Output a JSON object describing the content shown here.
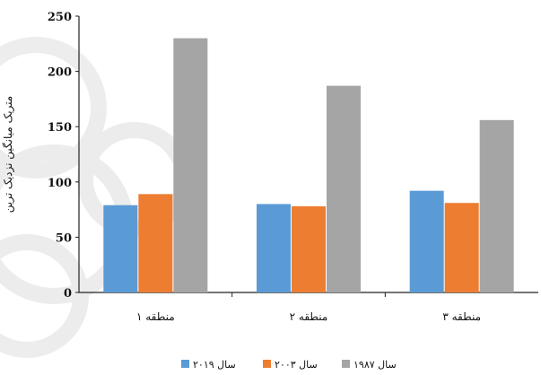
{
  "chart_data": {
    "type": "bar",
    "categories": [
      "منطقه ۱",
      "منطقه ۲",
      "منطقه ۳"
    ],
    "series": [
      {
        "name": "سال ۲۰۱۹",
        "color": "#5b9bd5",
        "values": [
          79,
          80,
          92
        ]
      },
      {
        "name": "سال ۲۰۰۳",
        "color": "#ed7d31",
        "values": [
          89,
          78,
          81
        ]
      },
      {
        "name": "سال ۱۹۸۷",
        "color": "#a5a5a5",
        "values": [
          230,
          187,
          156
        ]
      }
    ],
    "title": "",
    "xlabel": "",
    "ylabel": "متریک میانگین نزدیک ترین",
    "ylim": [
      0,
      250
    ],
    "yticks": [
      0,
      50,
      100,
      150,
      200,
      250
    ],
    "grid": false,
    "legend_position": "bottom"
  }
}
